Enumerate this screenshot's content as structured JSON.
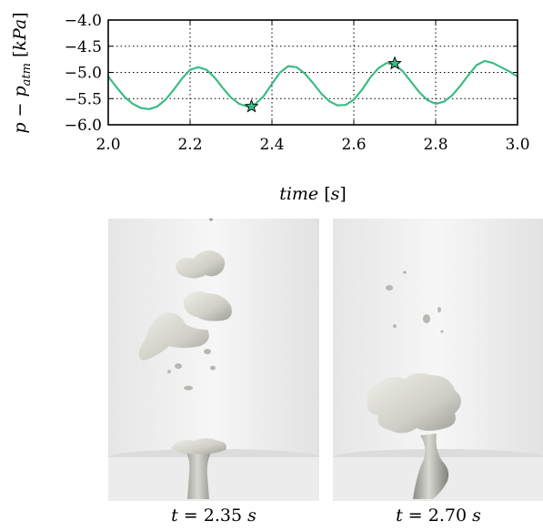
{
  "chart_data": {
    "type": "line",
    "xlabel": "time [s]",
    "ylabel": "p − p_atm [kPa]",
    "xlim": [
      2.0,
      3.0
    ],
    "ylim": [
      -6.0,
      -4.0
    ],
    "x_ticks": [
      "2.0",
      "2.2",
      "2.4",
      "2.6",
      "2.8",
      "3.0"
    ],
    "y_ticks": [
      "−4.0",
      "−4.5",
      "−5.0",
      "−5.5",
      "−6.0"
    ],
    "grid": true,
    "line_color": "#3dbb85",
    "series": [
      {
        "x": [
          2.0,
          2.02,
          2.04,
          2.06,
          2.08,
          2.1,
          2.12,
          2.14,
          2.16,
          2.18,
          2.2,
          2.22,
          2.24,
          2.26,
          2.28,
          2.3,
          2.32,
          2.34,
          2.36,
          2.38,
          2.4,
          2.42,
          2.44,
          2.46,
          2.48,
          2.5,
          2.52,
          2.54,
          2.56,
          2.58,
          2.6,
          2.62,
          2.64,
          2.66,
          2.68,
          2.7,
          2.72,
          2.74,
          2.76,
          2.78,
          2.8,
          2.82,
          2.84,
          2.86,
          2.88,
          2.9,
          2.92,
          2.94,
          2.96,
          2.98,
          3.0
        ],
        "y": [
          -5.08,
          -5.28,
          -5.47,
          -5.6,
          -5.68,
          -5.7,
          -5.65,
          -5.52,
          -5.33,
          -5.12,
          -4.95,
          -4.9,
          -4.95,
          -5.1,
          -5.3,
          -5.48,
          -5.6,
          -5.65,
          -5.6,
          -5.45,
          -5.22,
          -5.0,
          -4.88,
          -4.9,
          -5.02,
          -5.2,
          -5.4,
          -5.55,
          -5.63,
          -5.62,
          -5.52,
          -5.33,
          -5.1,
          -4.92,
          -4.82,
          -4.85,
          -4.98,
          -5.18,
          -5.38,
          -5.53,
          -5.6,
          -5.56,
          -5.44,
          -5.26,
          -5.05,
          -4.86,
          -4.78,
          -4.82,
          -4.9,
          -4.98,
          -5.08
        ]
      }
    ],
    "markers": [
      {
        "x": 2.35,
        "y": -5.65,
        "shape": "star",
        "color": "#3dbb85"
      },
      {
        "x": 2.7,
        "y": -4.83,
        "shape": "star",
        "color": "#3dbb85"
      }
    ]
  },
  "panels": [
    {
      "caption": "t = 2.35 s"
    },
    {
      "caption": "t = 2.70 s"
    }
  ]
}
